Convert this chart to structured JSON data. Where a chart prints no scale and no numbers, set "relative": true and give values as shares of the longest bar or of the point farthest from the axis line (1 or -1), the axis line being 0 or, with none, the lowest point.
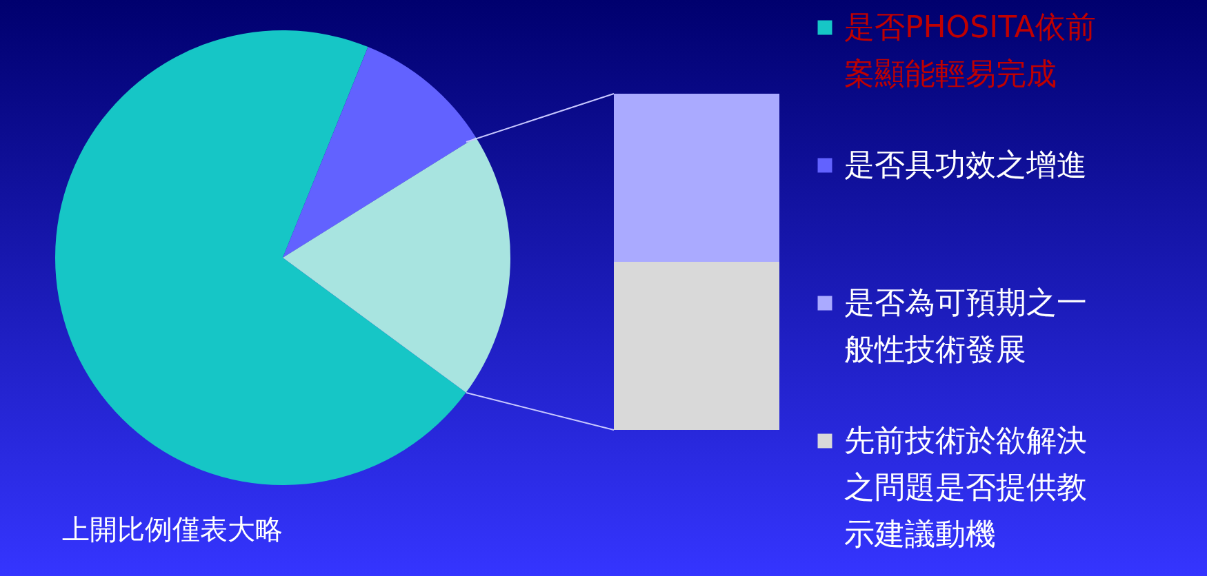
{
  "chart_data": [
    {
      "type": "pie",
      "categories": [
        "是否PHOSITA依前案顯能輕易完成",
        "是否具功效之增進",
        null
      ],
      "values": [
        71,
        10,
        19
      ],
      "colors": [
        "#16c6c6",
        "#6262ff",
        "#a8e4e0"
      ],
      "legend": "right",
      "annotations": [
        "上開比例僅表大略"
      ]
    },
    {
      "type": "bar",
      "stacked": true,
      "relative": true,
      "categories": [
        null
      ],
      "series": [
        {
          "name": "是否為可預期之一般性技術發展",
          "color": "#aaaaff",
          "values": [
            0.5
          ]
        },
        {
          "name": "先前技術於欲解決之問題是否提供教示建議動機",
          "color": "#d9d9d9",
          "values": [
            0.5
          ]
        }
      ],
      "legend": "right"
    }
  ]
}
